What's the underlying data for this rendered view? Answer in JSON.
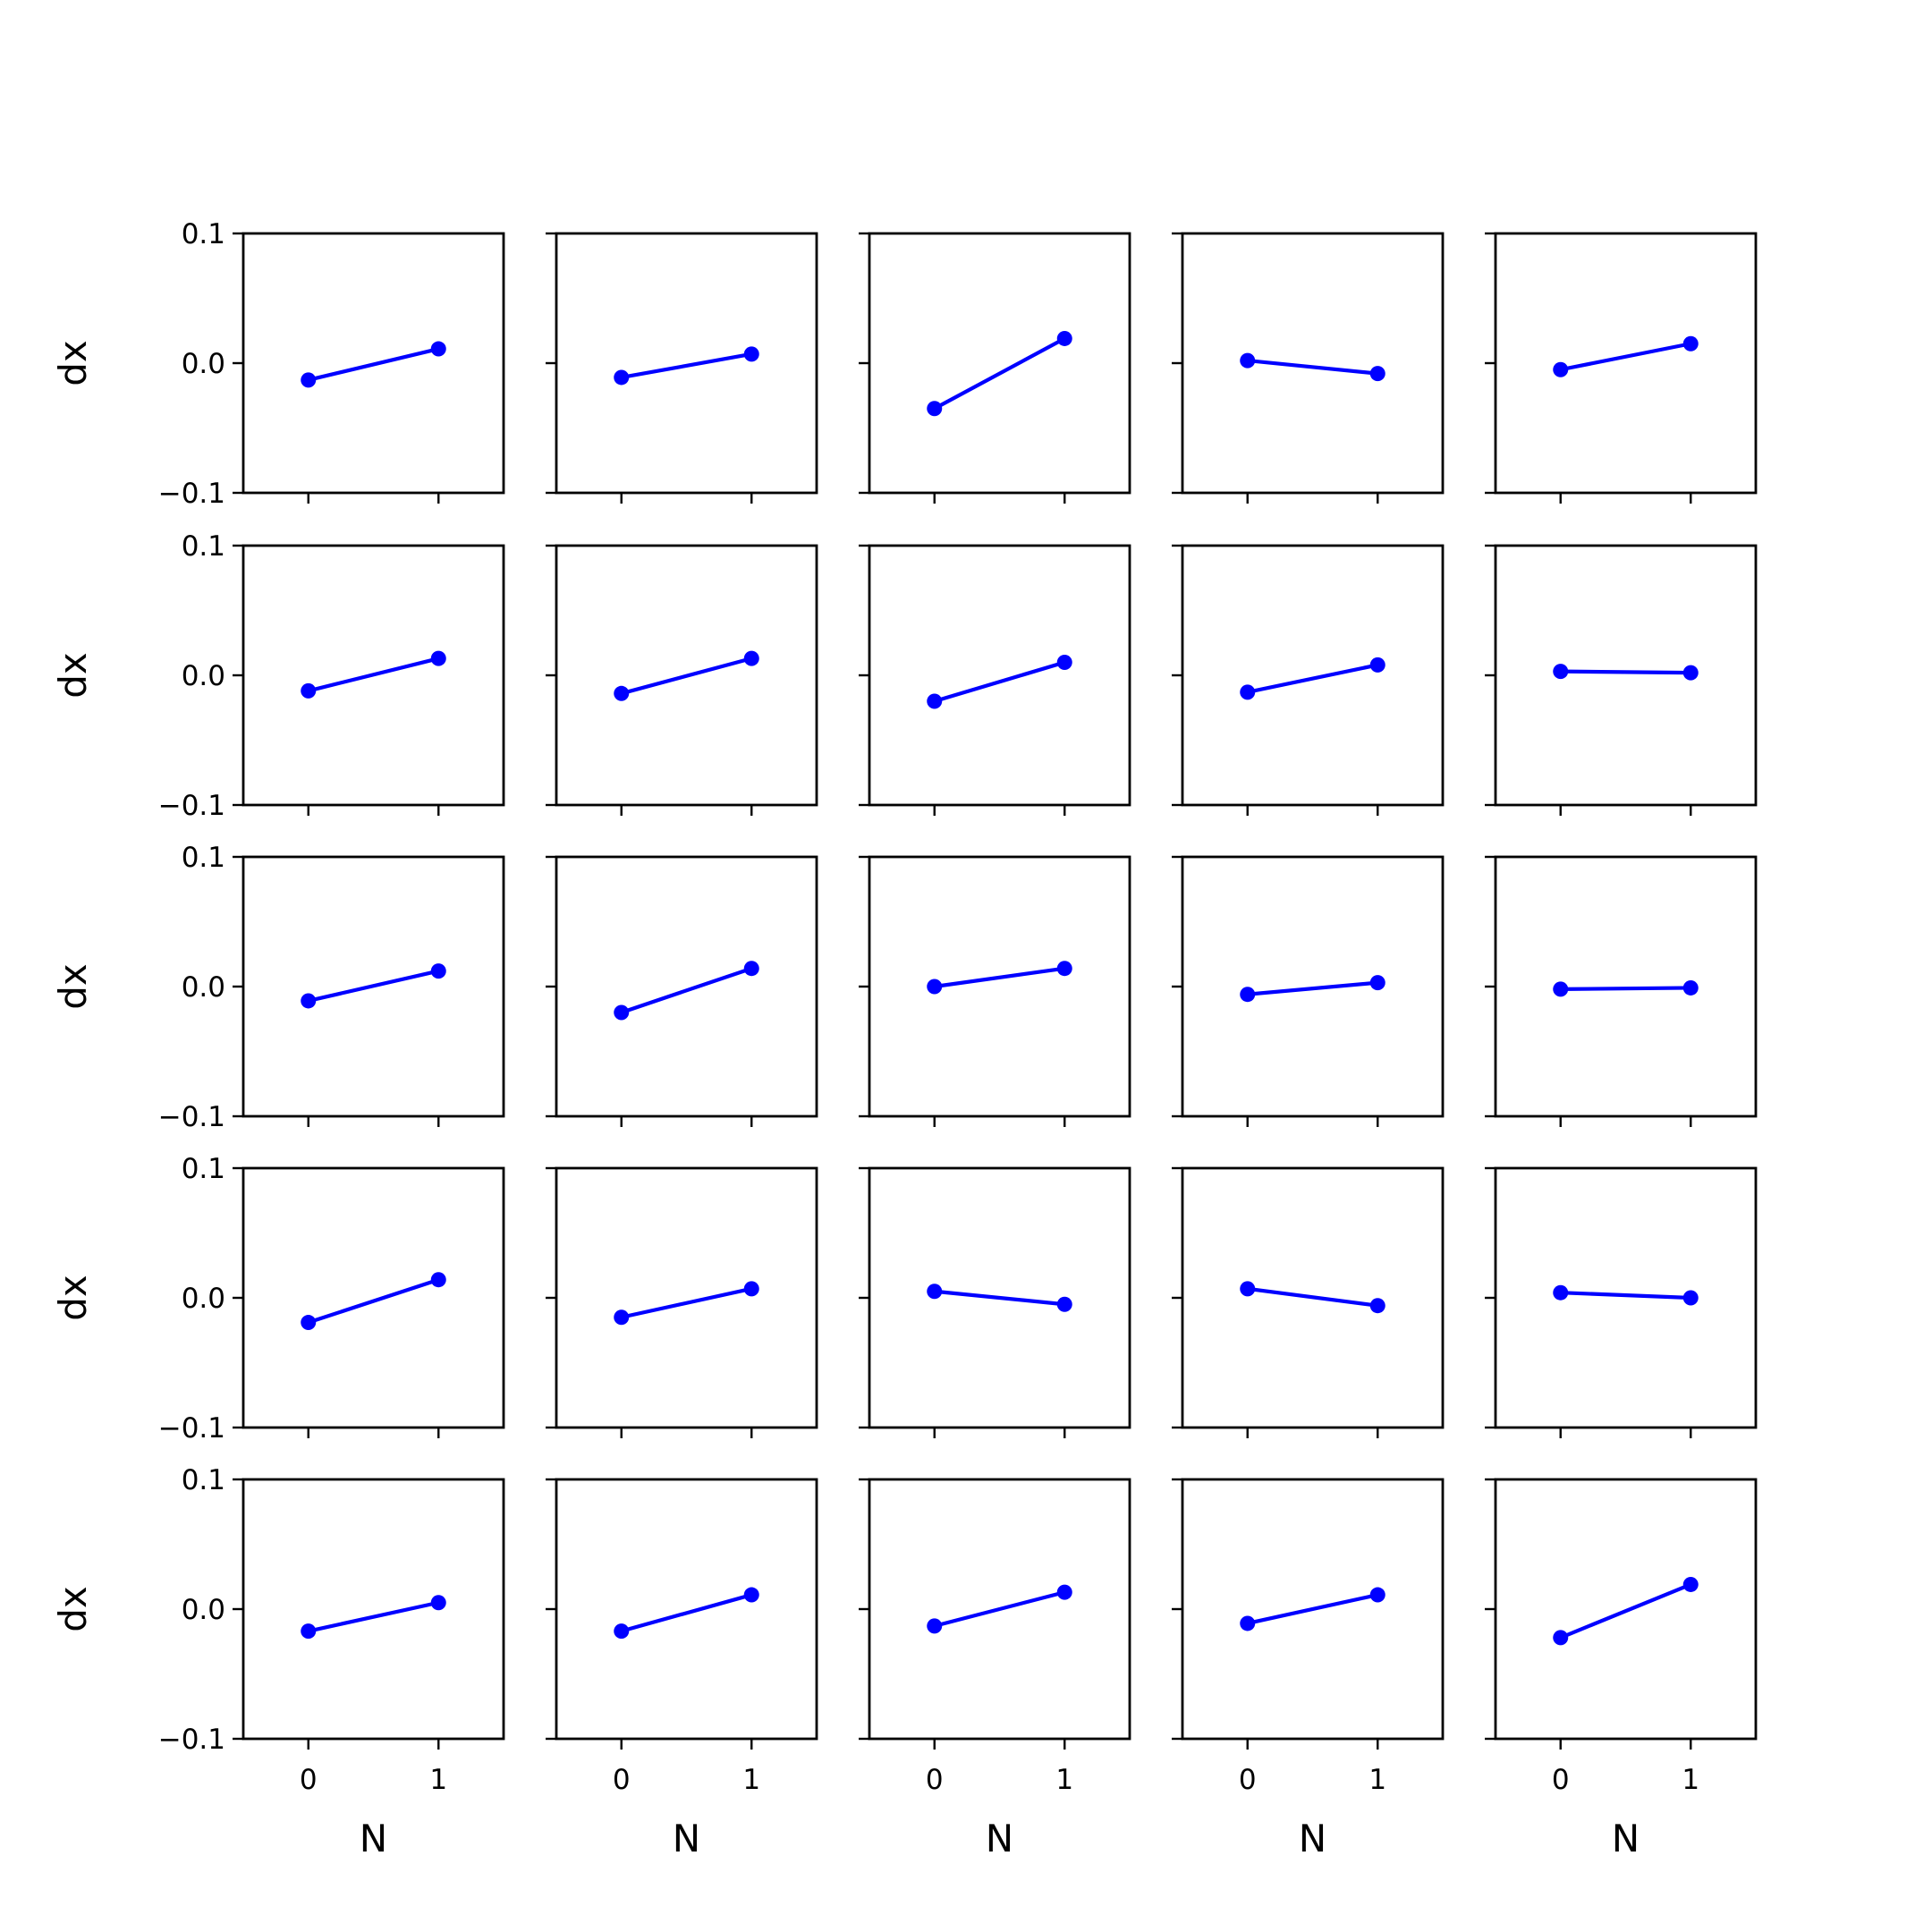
{
  "chart_data": {
    "type": "line",
    "layout": "grid",
    "rows": 5,
    "cols": 5,
    "xlabel": "N",
    "ylabel": "dx",
    "x": [
      0,
      1
    ],
    "xticks": [
      0,
      1
    ],
    "xtick_labels": [
      "0",
      "1"
    ],
    "xlim": [
      -0.5,
      1.5
    ],
    "ylim": [
      -0.1,
      0.1
    ],
    "yticks": [
      -0.1,
      0.0,
      0.1
    ],
    "ytick_labels": [
      "−0.1",
      "0.0",
      "0.1"
    ],
    "grid": false,
    "line_color": "#0000ff",
    "marker": "circle",
    "panels": [
      [
        [
          -0.013,
          0.011
        ],
        [
          -0.011,
          0.007
        ],
        [
          -0.035,
          0.019
        ],
        [
          0.002,
          -0.008
        ],
        [
          -0.005,
          0.015
        ]
      ],
      [
        [
          -0.012,
          0.013
        ],
        [
          -0.014,
          0.013
        ],
        [
          -0.02,
          0.01
        ],
        [
          -0.013,
          0.008
        ],
        [
          0.003,
          0.002
        ]
      ],
      [
        [
          -0.011,
          0.012
        ],
        [
          -0.02,
          0.014
        ],
        [
          0.0,
          0.014
        ],
        [
          -0.006,
          0.003
        ],
        [
          -0.002,
          -0.001
        ]
      ],
      [
        [
          -0.019,
          0.014
        ],
        [
          -0.015,
          0.007
        ],
        [
          0.005,
          -0.005
        ],
        [
          0.007,
          -0.006
        ],
        [
          0.004,
          0.0
        ]
      ],
      [
        [
          -0.017,
          0.005
        ],
        [
          -0.017,
          0.011
        ],
        [
          -0.013,
          0.013
        ],
        [
          -0.011,
          0.011
        ],
        [
          -0.022,
          0.019
        ]
      ]
    ]
  }
}
